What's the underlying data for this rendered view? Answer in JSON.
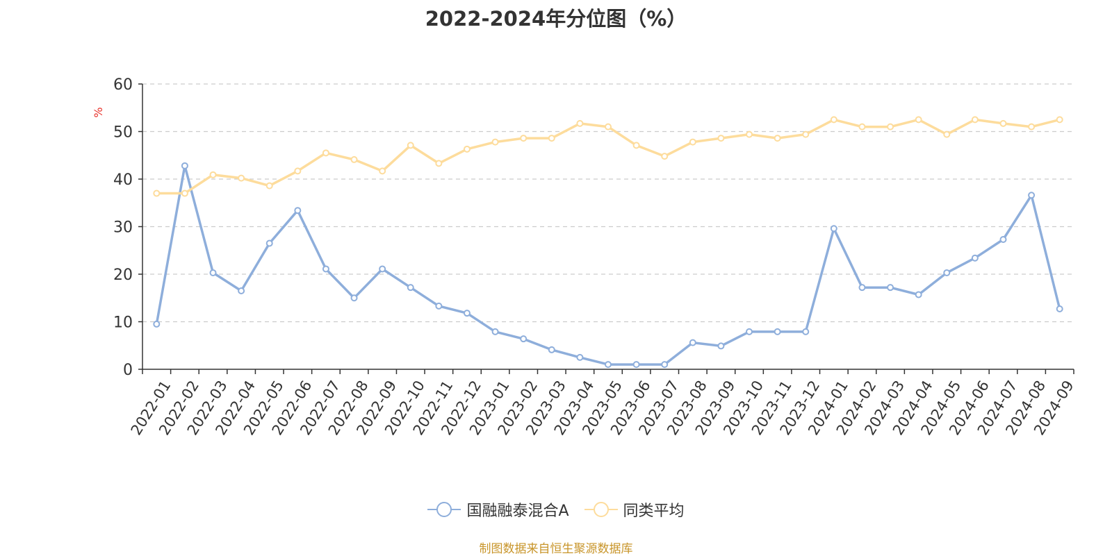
{
  "chart_data": {
    "type": "line",
    "title": "2022-2024年分位图（%）",
    "ylabel": "%",
    "xlabel": "",
    "ylim": [
      0,
      60
    ],
    "yticks": [
      0,
      10,
      20,
      30,
      40,
      50,
      60
    ],
    "grid": true,
    "legend_position": "bottom",
    "categories": [
      "2022-01",
      "2022-02",
      "2022-03",
      "2022-04",
      "2022-05",
      "2022-06",
      "2022-07",
      "2022-08",
      "2022-09",
      "2022-10",
      "2022-11",
      "2022-12",
      "2023-01",
      "2023-02",
      "2023-03",
      "2023-04",
      "2023-05",
      "2023-06",
      "2023-07",
      "2023-08",
      "2023-09",
      "2023-10",
      "2023-11",
      "2023-12",
      "2024-01",
      "2024-02",
      "2024-03",
      "2024-04",
      "2024-05",
      "2024-06",
      "2024-07",
      "2024-08",
      "2024-09"
    ],
    "series": [
      {
        "name": "国融融泰混合A",
        "color": "#8eaedb",
        "values": [
          9.5,
          42.8,
          20.3,
          16.5,
          26.5,
          33.4,
          21.1,
          15.0,
          21.1,
          17.2,
          13.3,
          11.8,
          7.9,
          6.4,
          4.1,
          2.5,
          1.0,
          1.0,
          1.0,
          5.6,
          4.9,
          7.9,
          7.9,
          7.9,
          29.6,
          17.2,
          17.2,
          15.7,
          20.3,
          23.4,
          27.3,
          36.6,
          12.7
        ]
      },
      {
        "name": "同类平均",
        "color": "#fddc9c",
        "values": [
          37.0,
          37.0,
          40.9,
          40.2,
          38.6,
          41.7,
          45.5,
          44.1,
          41.7,
          47.1,
          43.3,
          46.3,
          47.8,
          48.6,
          48.6,
          51.7,
          51.0,
          47.1,
          44.8,
          47.8,
          48.6,
          49.4,
          48.6,
          49.4,
          52.5,
          51.0,
          51.0,
          52.5,
          49.4,
          52.5,
          51.7,
          51.0,
          52.5
        ]
      }
    ]
  },
  "source_text": "制图数据来自恒生聚源数据库"
}
